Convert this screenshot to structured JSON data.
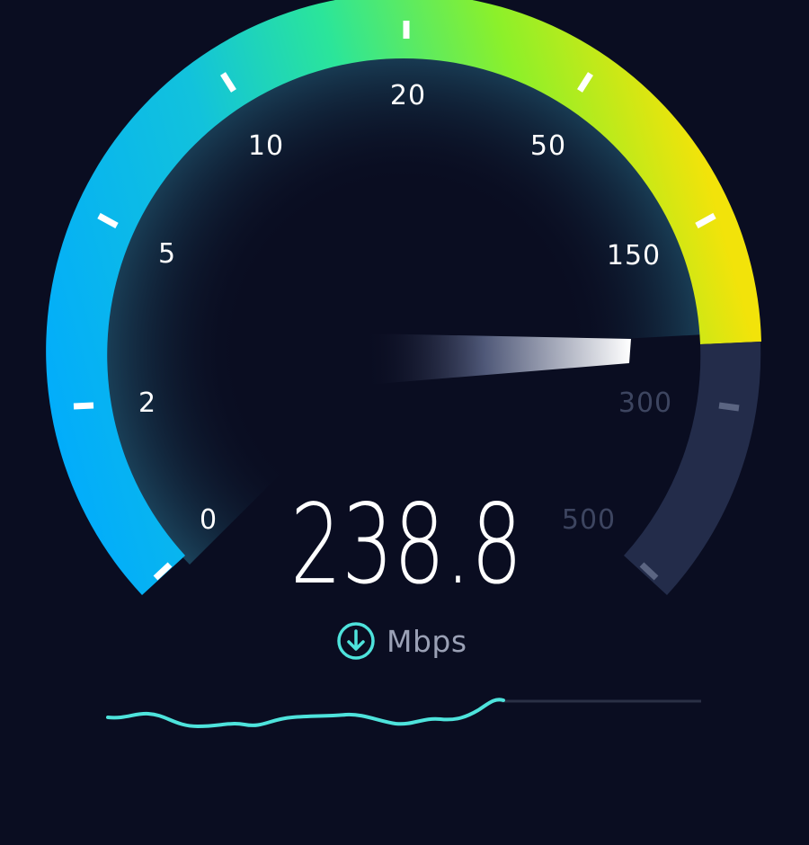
{
  "speed_test": {
    "current_speed": "238.8",
    "unit": "Mbps",
    "direction_icon": "download-arrow-icon",
    "needle_value": 238.8,
    "gauge": {
      "labels": [
        "0",
        "2",
        "5",
        "10",
        "20",
        "50",
        "150",
        "300",
        "500"
      ],
      "values": [
        0,
        2,
        5,
        10,
        20,
        50,
        150,
        300,
        500
      ],
      "active_labels": [
        "0",
        "2",
        "5",
        "10",
        "20",
        "50",
        "150"
      ],
      "inactive_labels": [
        "300",
        "500"
      ]
    },
    "colors": {
      "background": "#0a0d21",
      "arc_start": "#00aaff",
      "arc_mid": "#2be59a",
      "arc_end": "#f2e30a",
      "arc_inactive": "#232c4a",
      "accent": "#4ee3dc",
      "label_active": "#ffffff",
      "label_inactive": "#3d4560"
    },
    "history_graph": {
      "progress": 0.67
    }
  }
}
